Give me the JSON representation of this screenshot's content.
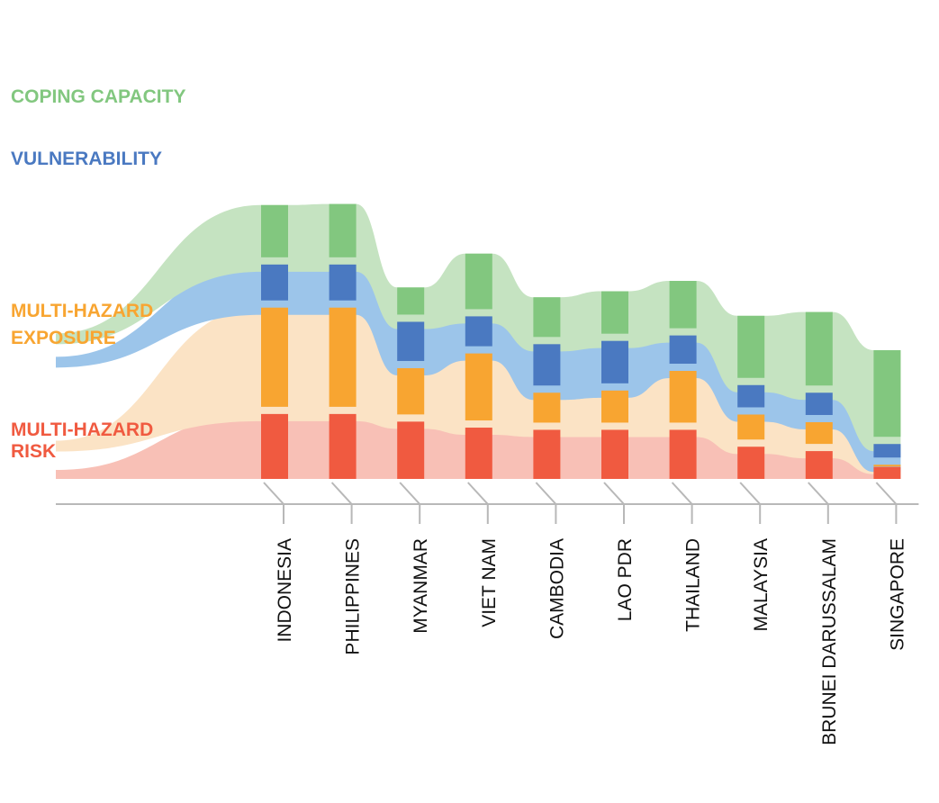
{
  "chart_data": {
    "type": "area",
    "categories": [
      "INDONESIA",
      "PHILIPPINES",
      "MYANMAR",
      "VIET NAM",
      "CAMBODIA",
      "LAO PDR",
      "THAILAND",
      "MALAYSIA",
      "BRUNEI DARUSSALAM",
      "SINGAPORE"
    ],
    "stacked": true,
    "series": [
      {
        "name": "MULTI-HAZARD RISK",
        "values": [
          11.9,
          11.9,
          10.5,
          9.4,
          9.0,
          9.0,
          9.0,
          5.9,
          5.1,
          2.2
        ],
        "color": "#f05a40",
        "fill": "#f8c0b6"
      },
      {
        "name": "MULTI-HAZARD EXPOSURE",
        "values": [
          19.5,
          19.5,
          9.8,
          13.6,
          6.8,
          7.2,
          10.8,
          5.9,
          5.3,
          0.4
        ],
        "color": "#f8a531",
        "fill": "#fbe3c5"
      },
      {
        "name": "VULNERABILITY",
        "values": [
          7.9,
          7.9,
          8.5,
          6.8,
          8.9,
          9.1,
          6.5,
          5.4,
          5.4,
          3.8
        ],
        "color": "#4a79c1",
        "fill": "#9cc5ea"
      },
      {
        "name": "COPING CAPACITY",
        "values": [
          10.9,
          11.1,
          6.3,
          11.5,
          8.6,
          9.1,
          10.0,
          12.7,
          14.8,
          17.2
        ],
        "color": "#82c77f",
        "fill": "#c5e3c1"
      }
    ],
    "axes": {
      "x": {
        "labels_rotated": true
      },
      "y": {
        "visible": false
      }
    },
    "grid": false,
    "legend": "left"
  }
}
